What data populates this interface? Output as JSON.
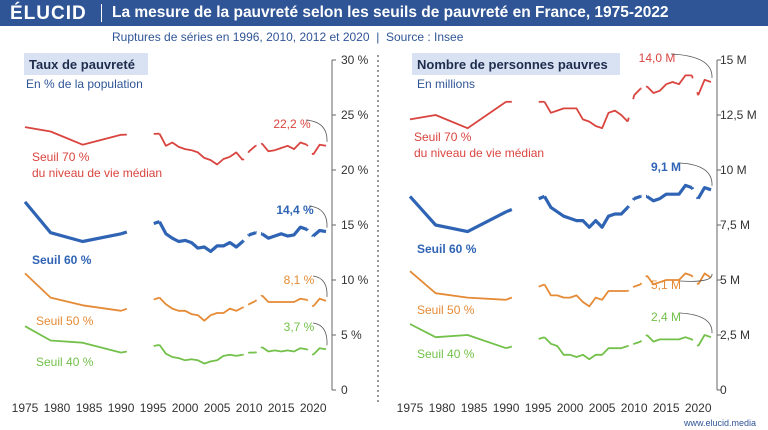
{
  "header": {
    "logo": "ÉLUCID",
    "title": "La mesure de la pauvreté selon les seuils de pauvreté en France, 1975-2022",
    "subtitle_parts": [
      "Ruptures de séries en 1996, 2010, 2012 et 2020",
      "|",
      "Source : Insee"
    ]
  },
  "footer": "www.elucid.media",
  "colors": {
    "header": "#2f5597",
    "s70": "#d9443f",
    "s60": "#2f64b5",
    "s50": "#e58a35",
    "s40": "#73c04a",
    "boxbg": "#d9e2f3"
  },
  "chart_data": [
    {
      "type": "line",
      "title": "Taux de pauvreté",
      "unit_label": "En % de la population",
      "x_ticks": [
        1975,
        1980,
        1985,
        1990,
        1995,
        2000,
        2005,
        2010,
        2015,
        2020
      ],
      "y_ticks": [
        0,
        5,
        10,
        15,
        20,
        25,
        30
      ],
      "y_tick_labels": [
        "0",
        "5 %",
        "10 %",
        "15 %",
        "20 %",
        "25 %",
        "30 %"
      ],
      "xlim": [
        1975,
        2022
      ],
      "ylim": [
        0,
        30
      ],
      "series": [
        {
          "name": "Seuil 70 %",
          "label_lines": [
            "Seuil 70 %",
            "du niveau de vie médian"
          ],
          "last_label": "22,2 %",
          "years": [
            1975,
            1979,
            1984,
            1990,
            1996,
            1997,
            1998,
            1999,
            2000,
            2001,
            2002,
            2003,
            2004,
            2005,
            2006,
            2007,
            2008,
            2009,
            2010,
            2011,
            2012,
            2013,
            2014,
            2015,
            2016,
            2017,
            2018,
            2019,
            2020,
            2021,
            2022
          ],
          "values": [
            23.9,
            23.5,
            22.3,
            23.2,
            23.3,
            22.2,
            22.5,
            22.1,
            21.9,
            21.8,
            21.6,
            21.1,
            20.9,
            20.5,
            21.0,
            21.2,
            21.6,
            20.9,
            21.7,
            22.2,
            22.4,
            21.7,
            21.8,
            22.0,
            22.2,
            21.9,
            22.5,
            22.3,
            21.4,
            22.3,
            22.2
          ]
        },
        {
          "name": "Seuil 60 %",
          "label_lines": [
            "Seuil 60 %"
          ],
          "last_label": "14,4 %",
          "years": [
            1975,
            1979,
            1984,
            1990,
            1996,
            1997,
            1998,
            1999,
            2000,
            2001,
            2002,
            2003,
            2004,
            2005,
            2006,
            2007,
            2008,
            2009,
            2010,
            2011,
            2012,
            2013,
            2014,
            2015,
            2016,
            2017,
            2018,
            2019,
            2020,
            2021,
            2022
          ],
          "values": [
            17.1,
            14.3,
            13.5,
            14.2,
            15.3,
            14.2,
            13.8,
            13.5,
            13.6,
            13.4,
            12.9,
            13.0,
            12.6,
            13.1,
            13.1,
            13.4,
            13.0,
            13.5,
            14.1,
            14.3,
            14.2,
            13.8,
            14.0,
            14.2,
            14.0,
            14.1,
            14.8,
            14.6,
            14.0,
            14.5,
            14.4
          ]
        },
        {
          "name": "Seuil 50 %",
          "label_lines": [
            "Seuil 50 %"
          ],
          "last_label": "8,1 %",
          "years": [
            1975,
            1979,
            1984,
            1990,
            1996,
            1997,
            1998,
            1999,
            2000,
            2001,
            2002,
            2003,
            2004,
            2005,
            2006,
            2007,
            2008,
            2009,
            2010,
            2011,
            2012,
            2013,
            2014,
            2015,
            2016,
            2017,
            2018,
            2019,
            2020,
            2021,
            2022
          ],
          "values": [
            10.6,
            8.4,
            7.7,
            7.2,
            8.4,
            7.8,
            7.4,
            7.2,
            7.2,
            6.9,
            6.8,
            6.3,
            6.8,
            7.0,
            7.0,
            7.4,
            7.2,
            7.5,
            7.8,
            8.1,
            8.6,
            8.0,
            8.0,
            8.0,
            8.0,
            8.0,
            8.3,
            8.2,
            7.6,
            8.3,
            8.1
          ]
        },
        {
          "name": "Seuil 40 %",
          "label_lines": [
            "Seuil 40 %"
          ],
          "last_label": "3,7 %",
          "years": [
            1975,
            1979,
            1984,
            1990,
            1996,
            1997,
            1998,
            1999,
            2000,
            2001,
            2002,
            2003,
            2004,
            2005,
            2006,
            2007,
            2008,
            2009,
            2010,
            2011,
            2012,
            2013,
            2014,
            2015,
            2016,
            2017,
            2018,
            2019,
            2020,
            2021,
            2022
          ],
          "values": [
            5.8,
            4.5,
            4.3,
            3.4,
            4.1,
            3.3,
            3.0,
            2.9,
            2.7,
            2.8,
            2.7,
            2.4,
            2.6,
            2.7,
            3.1,
            3.2,
            3.1,
            3.2,
            3.4,
            3.4,
            3.9,
            3.5,
            3.6,
            3.5,
            3.6,
            3.5,
            3.8,
            3.7,
            3.2,
            3.8,
            3.7
          ]
        }
      ]
    },
    {
      "type": "line",
      "title": "Nombre de personnes pauvres",
      "unit_label": "En millions",
      "x_ticks": [
        1975,
        1980,
        1985,
        1990,
        1995,
        2000,
        2005,
        2010,
        2015,
        2020
      ],
      "y_ticks": [
        0,
        2.5,
        5,
        7.5,
        10,
        12.5,
        15
      ],
      "y_tick_labels": [
        "0",
        "2,5 M",
        "5 M",
        "7,5 M",
        "10 M",
        "12,5 M",
        "15 M"
      ],
      "xlim": [
        1975,
        2022
      ],
      "ylim": [
        0,
        15
      ],
      "series": [
        {
          "name": "Seuil 70 %",
          "label_lines": [
            "Seuil 70 %",
            "du niveau de vie médian"
          ],
          "last_label": "14,0 M",
          "years": [
            1975,
            1979,
            1984,
            1990,
            1996,
            1997,
            1998,
            1999,
            2000,
            2001,
            2002,
            2003,
            2004,
            2005,
            2006,
            2007,
            2008,
            2009,
            2010,
            2011,
            2012,
            2013,
            2014,
            2015,
            2016,
            2017,
            2018,
            2019,
            2020,
            2021,
            2022
          ],
          "values": [
            12.3,
            12.5,
            11.9,
            13.1,
            13.1,
            12.6,
            12.7,
            12.8,
            12.8,
            12.8,
            12.3,
            12.2,
            12.0,
            11.9,
            12.6,
            12.7,
            12.5,
            12.2,
            13.4,
            13.7,
            13.8,
            13.5,
            13.6,
            13.9,
            14.0,
            13.9,
            14.3,
            14.3,
            13.4,
            14.1,
            14.0
          ]
        },
        {
          "name": "Seuil 60 %",
          "label_lines": [
            "Seuil 60 %"
          ],
          "last_label": "9,1 M",
          "years": [
            1975,
            1979,
            1984,
            1990,
            1996,
            1997,
            1998,
            1999,
            2000,
            2001,
            2002,
            2003,
            2004,
            2005,
            2006,
            2007,
            2008,
            2009,
            2010,
            2011,
            2012,
            2013,
            2014,
            2015,
            2016,
            2017,
            2018,
            2019,
            2020,
            2021,
            2022
          ],
          "values": [
            8.8,
            7.5,
            7.2,
            8.1,
            8.8,
            8.3,
            8.1,
            7.9,
            7.8,
            7.7,
            7.7,
            7.4,
            7.7,
            7.4,
            7.9,
            8.0,
            8.0,
            8.3,
            8.7,
            8.8,
            8.8,
            8.6,
            8.7,
            8.9,
            8.9,
            8.9,
            9.3,
            9.2,
            8.7,
            9.2,
            9.1
          ]
        },
        {
          "name": "Seuil 50 %",
          "label_lines": [
            "Seuil 50 %"
          ],
          "last_label": "5,1 M",
          "years": [
            1975,
            1979,
            1984,
            1990,
            1996,
            1997,
            1998,
            1999,
            2000,
            2001,
            2002,
            2003,
            2004,
            2005,
            2006,
            2007,
            2008,
            2009,
            2010,
            2011,
            2012,
            2013,
            2014,
            2015,
            2016,
            2017,
            2018,
            2019,
            2020,
            2021,
            2022
          ],
          "values": [
            5.4,
            4.4,
            4.2,
            4.1,
            4.8,
            4.3,
            4.3,
            4.2,
            4.2,
            4.3,
            4.0,
            3.8,
            4.2,
            4.1,
            4.5,
            4.5,
            4.5,
            4.5,
            4.7,
            4.8,
            5.2,
            4.8,
            4.9,
            5.0,
            5.0,
            5.0,
            5.3,
            5.2,
            4.8,
            5.3,
            5.1
          ]
        },
        {
          "name": "Seuil 40 %",
          "label_lines": [
            "Seuil 40 %"
          ],
          "last_label": "2,4 M",
          "years": [
            1975,
            1979,
            1984,
            1990,
            1996,
            1997,
            1998,
            1999,
            2000,
            2001,
            2002,
            2003,
            2004,
            2005,
            2006,
            2007,
            2008,
            2009,
            2010,
            2011,
            2012,
            2013,
            2014,
            2015,
            2016,
            2017,
            2018,
            2019,
            2020,
            2021,
            2022
          ],
          "values": [
            3.0,
            2.4,
            2.5,
            1.9,
            2.4,
            2.1,
            2.0,
            1.6,
            1.6,
            1.5,
            1.6,
            1.4,
            1.6,
            1.6,
            1.9,
            1.9,
            1.9,
            2.0,
            2.1,
            2.2,
            2.5,
            2.2,
            2.3,
            2.3,
            2.3,
            2.3,
            2.4,
            2.3,
            2.0,
            2.5,
            2.4
          ]
        }
      ]
    }
  ]
}
